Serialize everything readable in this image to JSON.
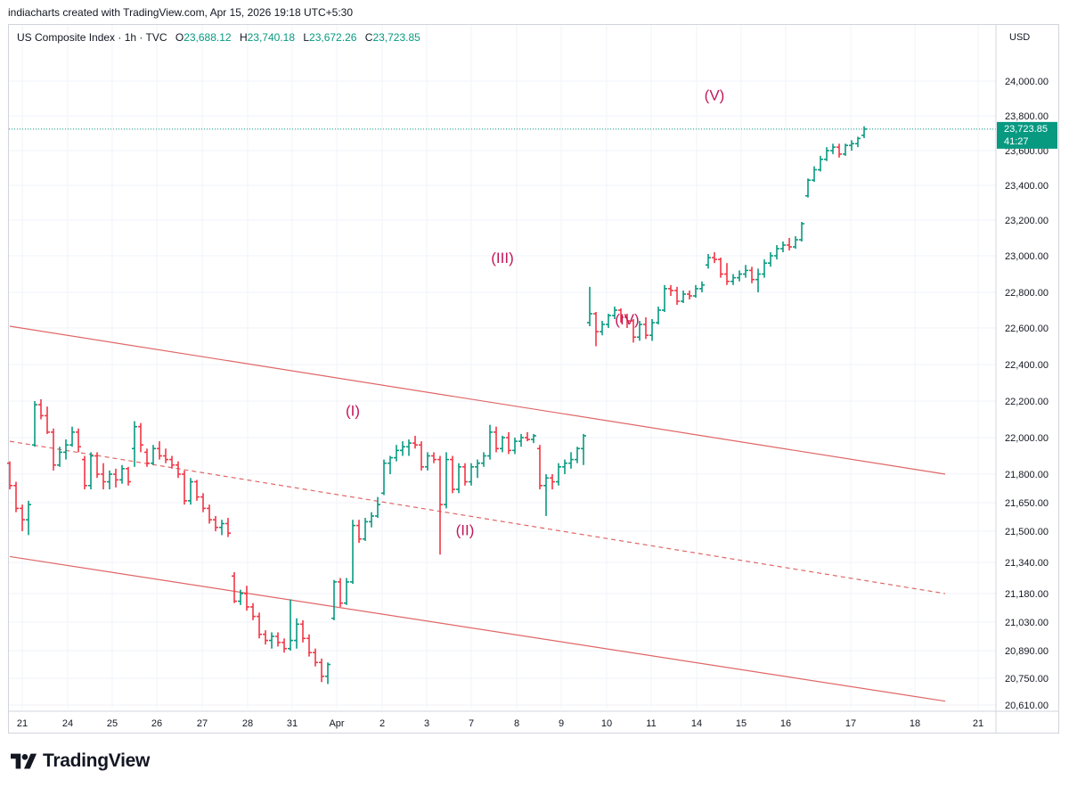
{
  "credit": "indiacharts created with TradingView.com, Apr 15, 2026 19:18 UTC+5:30",
  "legend": {
    "symbol": "US Composite Index · 1h · TVC",
    "open_label": "O",
    "open": "23,688.12",
    "high_label": "H",
    "high": "23,740.18",
    "low_label": "L",
    "low": "23,672.26",
    "close_label": "C",
    "close": "23,723.85"
  },
  "currency": "USD",
  "price_tag": {
    "value": "23,723.85",
    "countdown": "41:27"
  },
  "logo_text": "TradingView",
  "colors": {
    "up": "#089981",
    "down": "#f23645",
    "channel": "#e06666",
    "wave_label": "#c2185b",
    "price_line": "#089981",
    "grid": "#f0f3fa"
  },
  "chart_data": {
    "type": "ohlc",
    "x_ticks": [
      "21",
      "24",
      "25",
      "26",
      "27",
      "28",
      "31",
      "Apr",
      "2",
      "3",
      "7",
      "8",
      "9",
      "10",
      "11",
      "14",
      "15",
      "16",
      "17",
      "18",
      "21"
    ],
    "y_ticks": [
      "24,000.00",
      "23,800.00",
      "23,600.00",
      "23,400.00",
      "23,200.00",
      "23,000.00",
      "22,800.00",
      "22,600.00",
      "22,400.00",
      "22,200.00",
      "22,000.00",
      "21,800.00",
      "21,650.00",
      "21,500.00",
      "21,340.00",
      "21,180.00",
      "21,030.00",
      "20,890.00",
      "20,750.00",
      "20,610.00"
    ],
    "last_price": 23723.85,
    "wave_labels": [
      {
        "text": "(I)",
        "bar": 55,
        "price": 22120
      },
      {
        "text": "(II)",
        "bar": 73,
        "price": 21480
      },
      {
        "text": "(III)",
        "bar": 79,
        "price": 22960
      },
      {
        "text": "(IV)",
        "bar": 99,
        "price": 22620
      },
      {
        "text": "(V)",
        "bar": 113,
        "price": 23890
      }
    ],
    "channel_lines": [
      {
        "name": "upper",
        "style": "solid",
        "from": {
          "bar": 0,
          "price": 22610
        },
        "to": {
          "bar": 150,
          "price": 21800
        }
      },
      {
        "name": "middle",
        "style": "dashed",
        "from": {
          "bar": 0,
          "price": 21980
        },
        "to": {
          "bar": 150,
          "price": 21180
        }
      },
      {
        "name": "lower",
        "style": "solid",
        "from": {
          "bar": 0,
          "price": 21370
        },
        "to": {
          "bar": 150,
          "price": 20630
        }
      }
    ],
    "bars": [
      [
        21860,
        21870,
        21720,
        21740
      ],
      [
        21740,
        21760,
        21600,
        21620
      ],
      [
        21620,
        21640,
        21500,
        21560
      ],
      [
        21560,
        21660,
        21480,
        21640
      ],
      [
        21960,
        22200,
        21950,
        22180
      ],
      [
        22180,
        22210,
        22100,
        22120
      ],
      [
        22120,
        22170,
        22020,
        22030
      ],
      [
        22030,
        22050,
        21820,
        21850
      ],
      [
        21850,
        21950,
        21840,
        21920
      ],
      [
        21920,
        21990,
        21880,
        21960
      ],
      [
        21960,
        22060,
        21950,
        22030
      ],
      [
        22030,
        22050,
        21920,
        21950
      ],
      [
        21880,
        21900,
        21720,
        21740
      ],
      [
        21740,
        21920,
        21720,
        21900
      ],
      [
        21900,
        21920,
        21780,
        21800
      ],
      [
        21800,
        21860,
        21720,
        21760
      ],
      [
        21760,
        21820,
        21720,
        21800
      ],
      [
        21800,
        21830,
        21730,
        21770
      ],
      [
        21770,
        21850,
        21750,
        21830
      ],
      [
        21830,
        21840,
        21740,
        21760
      ],
      [
        21940,
        22090,
        21840,
        22060
      ],
      [
        22060,
        22080,
        21920,
        21960
      ],
      [
        21920,
        21940,
        21840,
        21860
      ],
      [
        21860,
        21960,
        21850,
        21940
      ],
      [
        21940,
        21980,
        21880,
        21900
      ],
      [
        21900,
        21940,
        21860,
        21880
      ],
      [
        21880,
        21900,
        21830,
        21850
      ],
      [
        21850,
        21870,
        21780,
        21800
      ],
      [
        21800,
        21820,
        21640,
        21660
      ],
      [
        21660,
        21780,
        21640,
        21760
      ],
      [
        21760,
        21770,
        21660,
        21680
      ],
      [
        21680,
        21700,
        21600,
        21620
      ],
      [
        21620,
        21640,
        21540,
        21560
      ],
      [
        21560,
        21580,
        21500,
        21520
      ],
      [
        21520,
        21560,
        21480,
        21540
      ],
      [
        21540,
        21570,
        21470,
        21490
      ],
      [
        21270,
        21290,
        21130,
        21140
      ],
      [
        21140,
        21200,
        21120,
        21180
      ],
      [
        21180,
        21220,
        21090,
        21110
      ],
      [
        21110,
        21130,
        21040,
        21060
      ],
      [
        21060,
        21080,
        20950,
        20970
      ],
      [
        20970,
        20990,
        20920,
        20940
      ],
      [
        20940,
        20980,
        20900,
        20960
      ],
      [
        20960,
        20980,
        20910,
        20930
      ],
      [
        20930,
        20950,
        20880,
        20900
      ],
      [
        20900,
        21150,
        20890,
        20940
      ],
      [
        20940,
        21050,
        20900,
        21020
      ],
      [
        21020,
        21040,
        20930,
        20950
      ],
      [
        20950,
        20970,
        20860,
        20880
      ],
      [
        20880,
        20900,
        20810,
        20830
      ],
      [
        20830,
        20850,
        20730,
        20760
      ],
      [
        20760,
        20830,
        20720,
        20820
      ],
      [
        21050,
        21250,
        21040,
        21240
      ],
      [
        21240,
        21260,
        21110,
        21130
      ],
      [
        21130,
        21260,
        21120,
        21240
      ],
      [
        21240,
        21560,
        21230,
        21530
      ],
      [
        21530,
        21560,
        21440,
        21460
      ],
      [
        21460,
        21570,
        21450,
        21550
      ],
      [
        21550,
        21600,
        21520,
        21580
      ],
      [
        21580,
        21680,
        21570,
        21640
      ],
      [
        21700,
        21880,
        21690,
        21860
      ],
      [
        21860,
        21900,
        21800,
        21890
      ],
      [
        21890,
        21960,
        21870,
        21930
      ],
      [
        21930,
        21980,
        21900,
        21950
      ],
      [
        21950,
        21990,
        21900,
        21970
      ],
      [
        21970,
        22010,
        21940,
        21960
      ],
      [
        21960,
        21980,
        21820,
        21840
      ],
      [
        21840,
        21920,
        21820,
        21900
      ],
      [
        21900,
        21920,
        21860,
        21880
      ],
      [
        21880,
        21900,
        21380,
        21640
      ],
      [
        21640,
        21920,
        21620,
        21880
      ],
      [
        21880,
        21900,
        21700,
        21720
      ],
      [
        21720,
        21860,
        21700,
        21840
      ],
      [
        21840,
        21860,
        21740,
        21760
      ],
      [
        21760,
        21860,
        21740,
        21840
      ],
      [
        21840,
        21880,
        21780,
        21860
      ],
      [
        21860,
        21920,
        21840,
        21900
      ],
      [
        21900,
        22070,
        21880,
        22030
      ],
      [
        22030,
        22060,
        21920,
        21940
      ],
      [
        21940,
        22010,
        21920,
        22000
      ],
      [
        22000,
        22030,
        21910,
        21930
      ],
      [
        21930,
        22000,
        21910,
        21980
      ],
      [
        21980,
        22020,
        21950,
        22000
      ],
      [
        22000,
        22030,
        21980,
        21990
      ],
      [
        21990,
        22020,
        21970,
        22010
      ],
      [
        21940,
        21960,
        21720,
        21740
      ],
      [
        21740,
        21800,
        21580,
        21780
      ],
      [
        21780,
        21800,
        21720,
        21760
      ],
      [
        21760,
        21860,
        21740,
        21840
      ],
      [
        21840,
        21880,
        21800,
        21860
      ],
      [
        21860,
        21920,
        21830,
        21880
      ],
      [
        21880,
        21950,
        21860,
        21940
      ],
      [
        21940,
        22020,
        21850,
        22010
      ],
      [
        22630,
        22830,
        22610,
        22680
      ],
      [
        22680,
        22690,
        22500,
        22580
      ],
      [
        22580,
        22640,
        22560,
        22620
      ],
      [
        22620,
        22680,
        22600,
        22670
      ],
      [
        22670,
        22720,
        22650,
        22700
      ],
      [
        22700,
        22710,
        22630,
        22660
      ],
      [
        22660,
        22680,
        22600,
        22640
      ],
      [
        22640,
        22650,
        22520,
        22550
      ],
      [
        22550,
        22640,
        22530,
        22620
      ],
      [
        22620,
        22660,
        22540,
        22560
      ],
      [
        22560,
        22650,
        22530,
        22630
      ],
      [
        22630,
        22720,
        22620,
        22700
      ],
      [
        22700,
        22840,
        22690,
        22820
      ],
      [
        22820,
        22840,
        22780,
        22810
      ],
      [
        22810,
        22830,
        22730,
        22750
      ],
      [
        22750,
        22810,
        22740,
        22790
      ],
      [
        22790,
        22810,
        22760,
        22780
      ],
      [
        22780,
        22840,
        22770,
        22820
      ],
      [
        22820,
        22860,
        22800,
        22840
      ],
      [
        22950,
        23010,
        22930,
        22990
      ],
      [
        22990,
        23020,
        22960,
        22980
      ],
      [
        22980,
        22990,
        22880,
        22900
      ],
      [
        22900,
        22960,
        22840,
        22860
      ],
      [
        22860,
        22900,
        22840,
        22880
      ],
      [
        22880,
        22920,
        22860,
        22900
      ],
      [
        22900,
        22950,
        22880,
        22920
      ],
      [
        22920,
        22940,
        22850,
        22870
      ],
      [
        22870,
        22930,
        22800,
        22900
      ],
      [
        22900,
        22980,
        22880,
        22960
      ],
      [
        22960,
        23020,
        22940,
        23000
      ],
      [
        23000,
        23060,
        22980,
        23040
      ],
      [
        23040,
        23080,
        23020,
        23060
      ],
      [
        23060,
        23100,
        23030,
        23050
      ],
      [
        23050,
        23110,
        23040,
        23090
      ],
      [
        23090,
        23190,
        23080,
        23180
      ],
      [
        23340,
        23440,
        23330,
        23430
      ],
      [
        23430,
        23510,
        23420,
        23490
      ],
      [
        23490,
        23570,
        23480,
        23550
      ],
      [
        23550,
        23620,
        23540,
        23600
      ],
      [
        23600,
        23640,
        23580,
        23620
      ],
      [
        23620,
        23640,
        23560,
        23580
      ],
      [
        23580,
        23640,
        23570,
        23630
      ],
      [
        23630,
        23660,
        23600,
        23640
      ],
      [
        23640,
        23680,
        23620,
        23670
      ],
      [
        23688,
        23740,
        23672,
        23724
      ]
    ]
  }
}
